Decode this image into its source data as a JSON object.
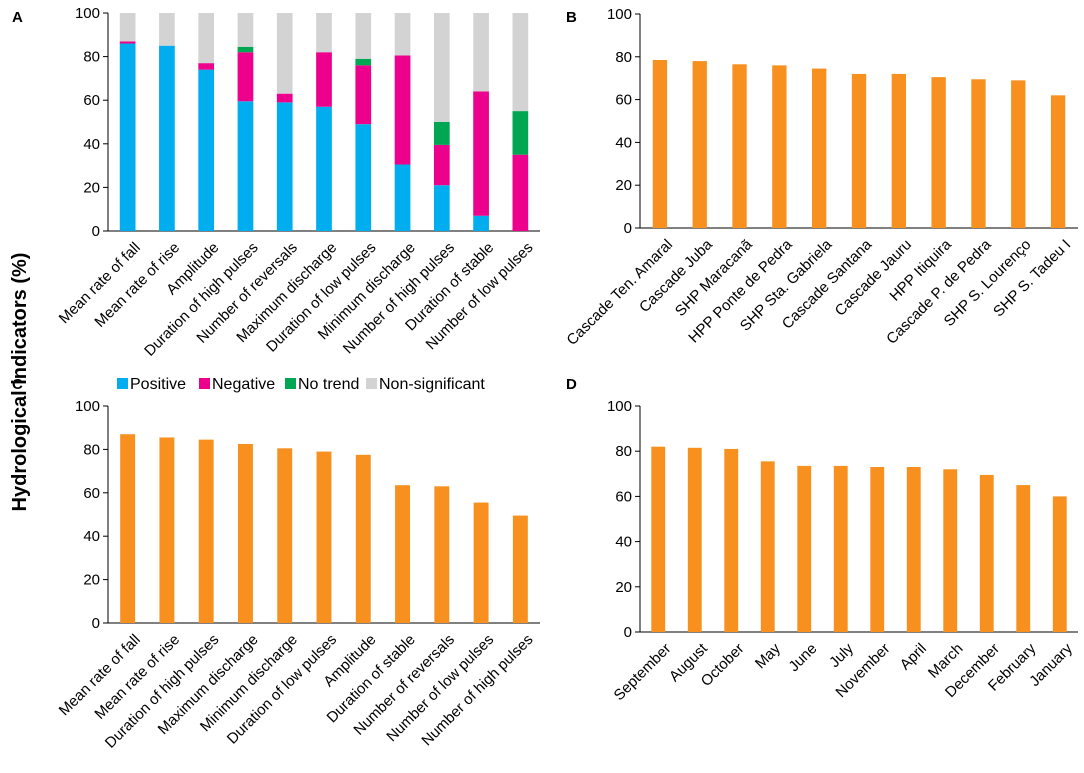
{
  "figure": {
    "y_axis_label": "Hydrological indicators (%)"
  },
  "chart_data": [
    {
      "panel": "A",
      "type": "bar",
      "stacked": true,
      "ylim": [
        0,
        100
      ],
      "yticks": [
        0,
        20,
        40,
        60,
        80,
        100
      ],
      "categories": [
        "Mean rate of fall",
        "Mean rate of rise",
        "Amplitude",
        "Duration of high pulses",
        "Number of reversals",
        "Maximum discharge",
        "Duration of low pulses",
        "Minimum discharge",
        "Number of high pulses",
        "Duration of stable",
        "Number of low pulses"
      ],
      "series": [
        {
          "name": "Positive",
          "color": "#00aeef",
          "values": [
            86,
            85,
            74,
            59.5,
            59,
            57,
            49,
            30.5,
            21,
            7,
            0
          ]
        },
        {
          "name": "Negative",
          "color": "#ec008c",
          "values": [
            1,
            0,
            3,
            22.5,
            4,
            25,
            27,
            50,
            18.5,
            57,
            35
          ]
        },
        {
          "name": "No trend",
          "color": "#00a651",
          "values": [
            0,
            0,
            0,
            2.5,
            0,
            0,
            3,
            0,
            10.5,
            0,
            20
          ]
        },
        {
          "name": "Non-significant",
          "color": "#d3d3d3",
          "values": [
            13,
            15,
            23,
            15.5,
            37,
            18,
            21,
            19.5,
            50,
            36,
            45
          ]
        }
      ]
    },
    {
      "panel": "B",
      "type": "bar",
      "color": "#f7901e",
      "ylim": [
        0,
        100
      ],
      "yticks": [
        0,
        20,
        40,
        60,
        80,
        100
      ],
      "categories": [
        "Cascade Ten. Amaral",
        "Cascade Juba",
        "SHP Maracanã",
        "HPP Ponte de Pedra",
        "SHP Sta. Gabriela",
        "Cascade Santana",
        "Cascade Jauru",
        "HPP Itiquira",
        "Cascade P. de Pedra",
        "SHP S. Lourenço",
        "SHP S. Tadeu I"
      ],
      "values": [
        78.5,
        78,
        76.5,
        76,
        74.5,
        72,
        72,
        70.5,
        69.5,
        69,
        62
      ]
    },
    {
      "panel": "C",
      "type": "bar",
      "color": "#f7901e",
      "ylim": [
        0,
        100
      ],
      "yticks": [
        0,
        20,
        40,
        60,
        80,
        100
      ],
      "categories": [
        "Mean rate of fall",
        "Mean rate of rise",
        "Duration of high pulses",
        "Maximum discharge",
        "Minimum discharge",
        "Duration of low pulses",
        "Amplitude",
        "Duration of stable",
        "Number of reversals",
        "Number of low pulses",
        "Number of high pulses"
      ],
      "values": [
        87,
        85.5,
        84.5,
        82.5,
        80.5,
        79,
        77.5,
        63.5,
        63,
        55.5,
        49.5
      ]
    },
    {
      "panel": "D",
      "type": "bar",
      "color": "#f7901e",
      "ylim": [
        0,
        100
      ],
      "yticks": [
        0,
        20,
        40,
        60,
        80,
        100
      ],
      "categories": [
        "September",
        "August",
        "October",
        "May",
        "June",
        "July",
        "November",
        "April",
        "March",
        "December",
        "February",
        "January"
      ],
      "values": [
        82,
        81.5,
        81,
        75.5,
        73.5,
        73.5,
        73,
        73,
        72,
        69.5,
        65,
        60
      ]
    }
  ],
  "legend": {
    "items": [
      {
        "label": "Positive",
        "color": "#00aeef"
      },
      {
        "label": "Negative",
        "color": "#ec008c"
      },
      {
        "label": "No trend",
        "color": "#00a651"
      },
      {
        "label": "Non-significant",
        "color": "#d3d3d3"
      }
    ]
  }
}
